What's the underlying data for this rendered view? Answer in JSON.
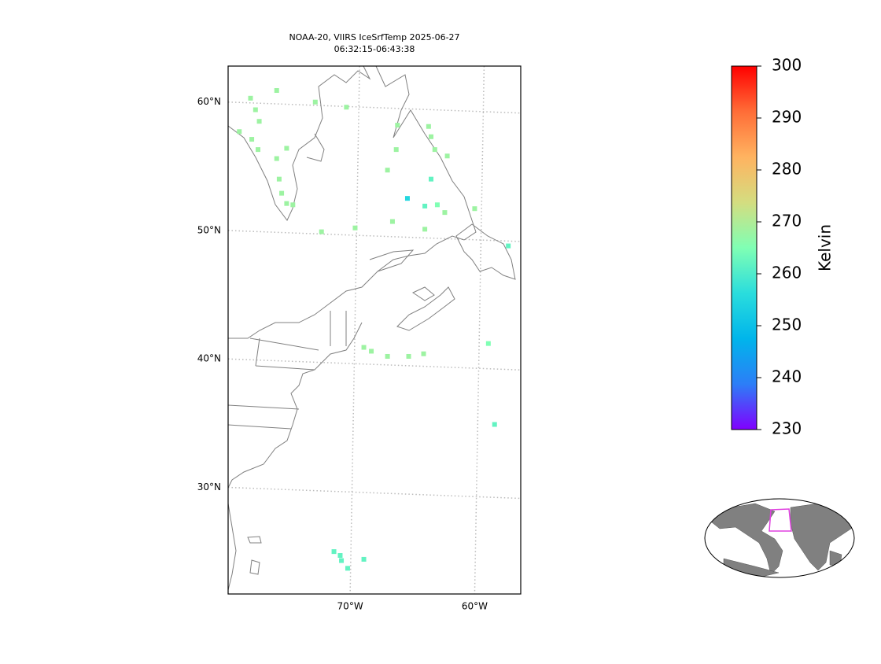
{
  "map": {
    "title": [
      "NOAA-20, VIIRS IceSrfTemp 2025-06-27",
      "06:32:15-06:43:38"
    ],
    "xlim": [
      -79.8,
      -56.3
    ],
    "ylim": [
      21.7,
      62.8
    ],
    "lat_ticks": [
      {
        "value": 60,
        "label": "60°N"
      },
      {
        "value": 50,
        "label": "50°N"
      },
      {
        "value": 40,
        "label": "40°N"
      },
      {
        "value": 30,
        "label": "30°N"
      }
    ],
    "lon_ticks": [
      {
        "value": -70,
        "label": "70°W"
      },
      {
        "value": -60,
        "label": "60°W"
      }
    ],
    "grid": true,
    "points": {
      "lon": [
        -78.0,
        -77.6,
        -77.3,
        -78.9,
        -77.9,
        -77.4,
        -75.9,
        -75.1,
        -75.7,
        -75.5,
        -75.1,
        -74.6,
        -75.9,
        -72.8,
        -70.3,
        -66.2,
        -63.7,
        -63.5,
        -63.2,
        -62.2,
        -66.3,
        -67.0,
        -63.5,
        -65.4,
        -64.0,
        -63.0,
        -62.4,
        -64.0,
        -66.6,
        -72.3,
        -69.6,
        -60.0,
        -57.3,
        -68.9,
        -68.3,
        -67.0,
        -65.3,
        -64.1,
        -58.9,
        -58.4,
        -71.3,
        -70.7,
        -70.2,
        -68.9,
        -70.8
      ],
      "lat": [
        60.3,
        59.4,
        58.5,
        57.7,
        57.1,
        56.3,
        55.6,
        56.4,
        54.0,
        52.9,
        52.1,
        52.0,
        60.9,
        60.0,
        59.6,
        58.2,
        58.1,
        57.3,
        56.3,
        55.8,
        56.3,
        54.7,
        54.0,
        52.5,
        51.9,
        52.0,
        51.4,
        50.1,
        50.7,
        49.9,
        50.2,
        51.7,
        48.8,
        40.9,
        40.6,
        40.2,
        40.2,
        40.4,
        41.2,
        34.9,
        25.0,
        24.3,
        23.7,
        24.4,
        24.7
      ],
      "values": [
        268,
        268,
        268,
        268,
        268,
        268,
        268,
        268,
        268,
        268,
        268,
        268,
        268,
        268,
        268,
        268,
        268,
        268,
        268,
        268,
        268,
        268,
        262,
        255,
        262,
        265,
        268,
        268,
        268,
        268,
        268,
        268,
        262,
        268,
        268,
        268,
        268,
        268,
        265,
        262,
        262,
        262,
        262,
        262,
        262
      ]
    },
    "colorbar": {
      "label": "Kelvin",
      "lim": [
        230,
        300
      ],
      "ticks": [
        230,
        240,
        250,
        260,
        270,
        280,
        290,
        300
      ],
      "colormap": [
        "#8000ff",
        "#2c7ef7",
        "#00b5eb",
        "#2adddd",
        "#80ffb4",
        "#d4dd80",
        "#ffb360",
        "#ff6d37",
        "#ff0000"
      ]
    }
  }
}
